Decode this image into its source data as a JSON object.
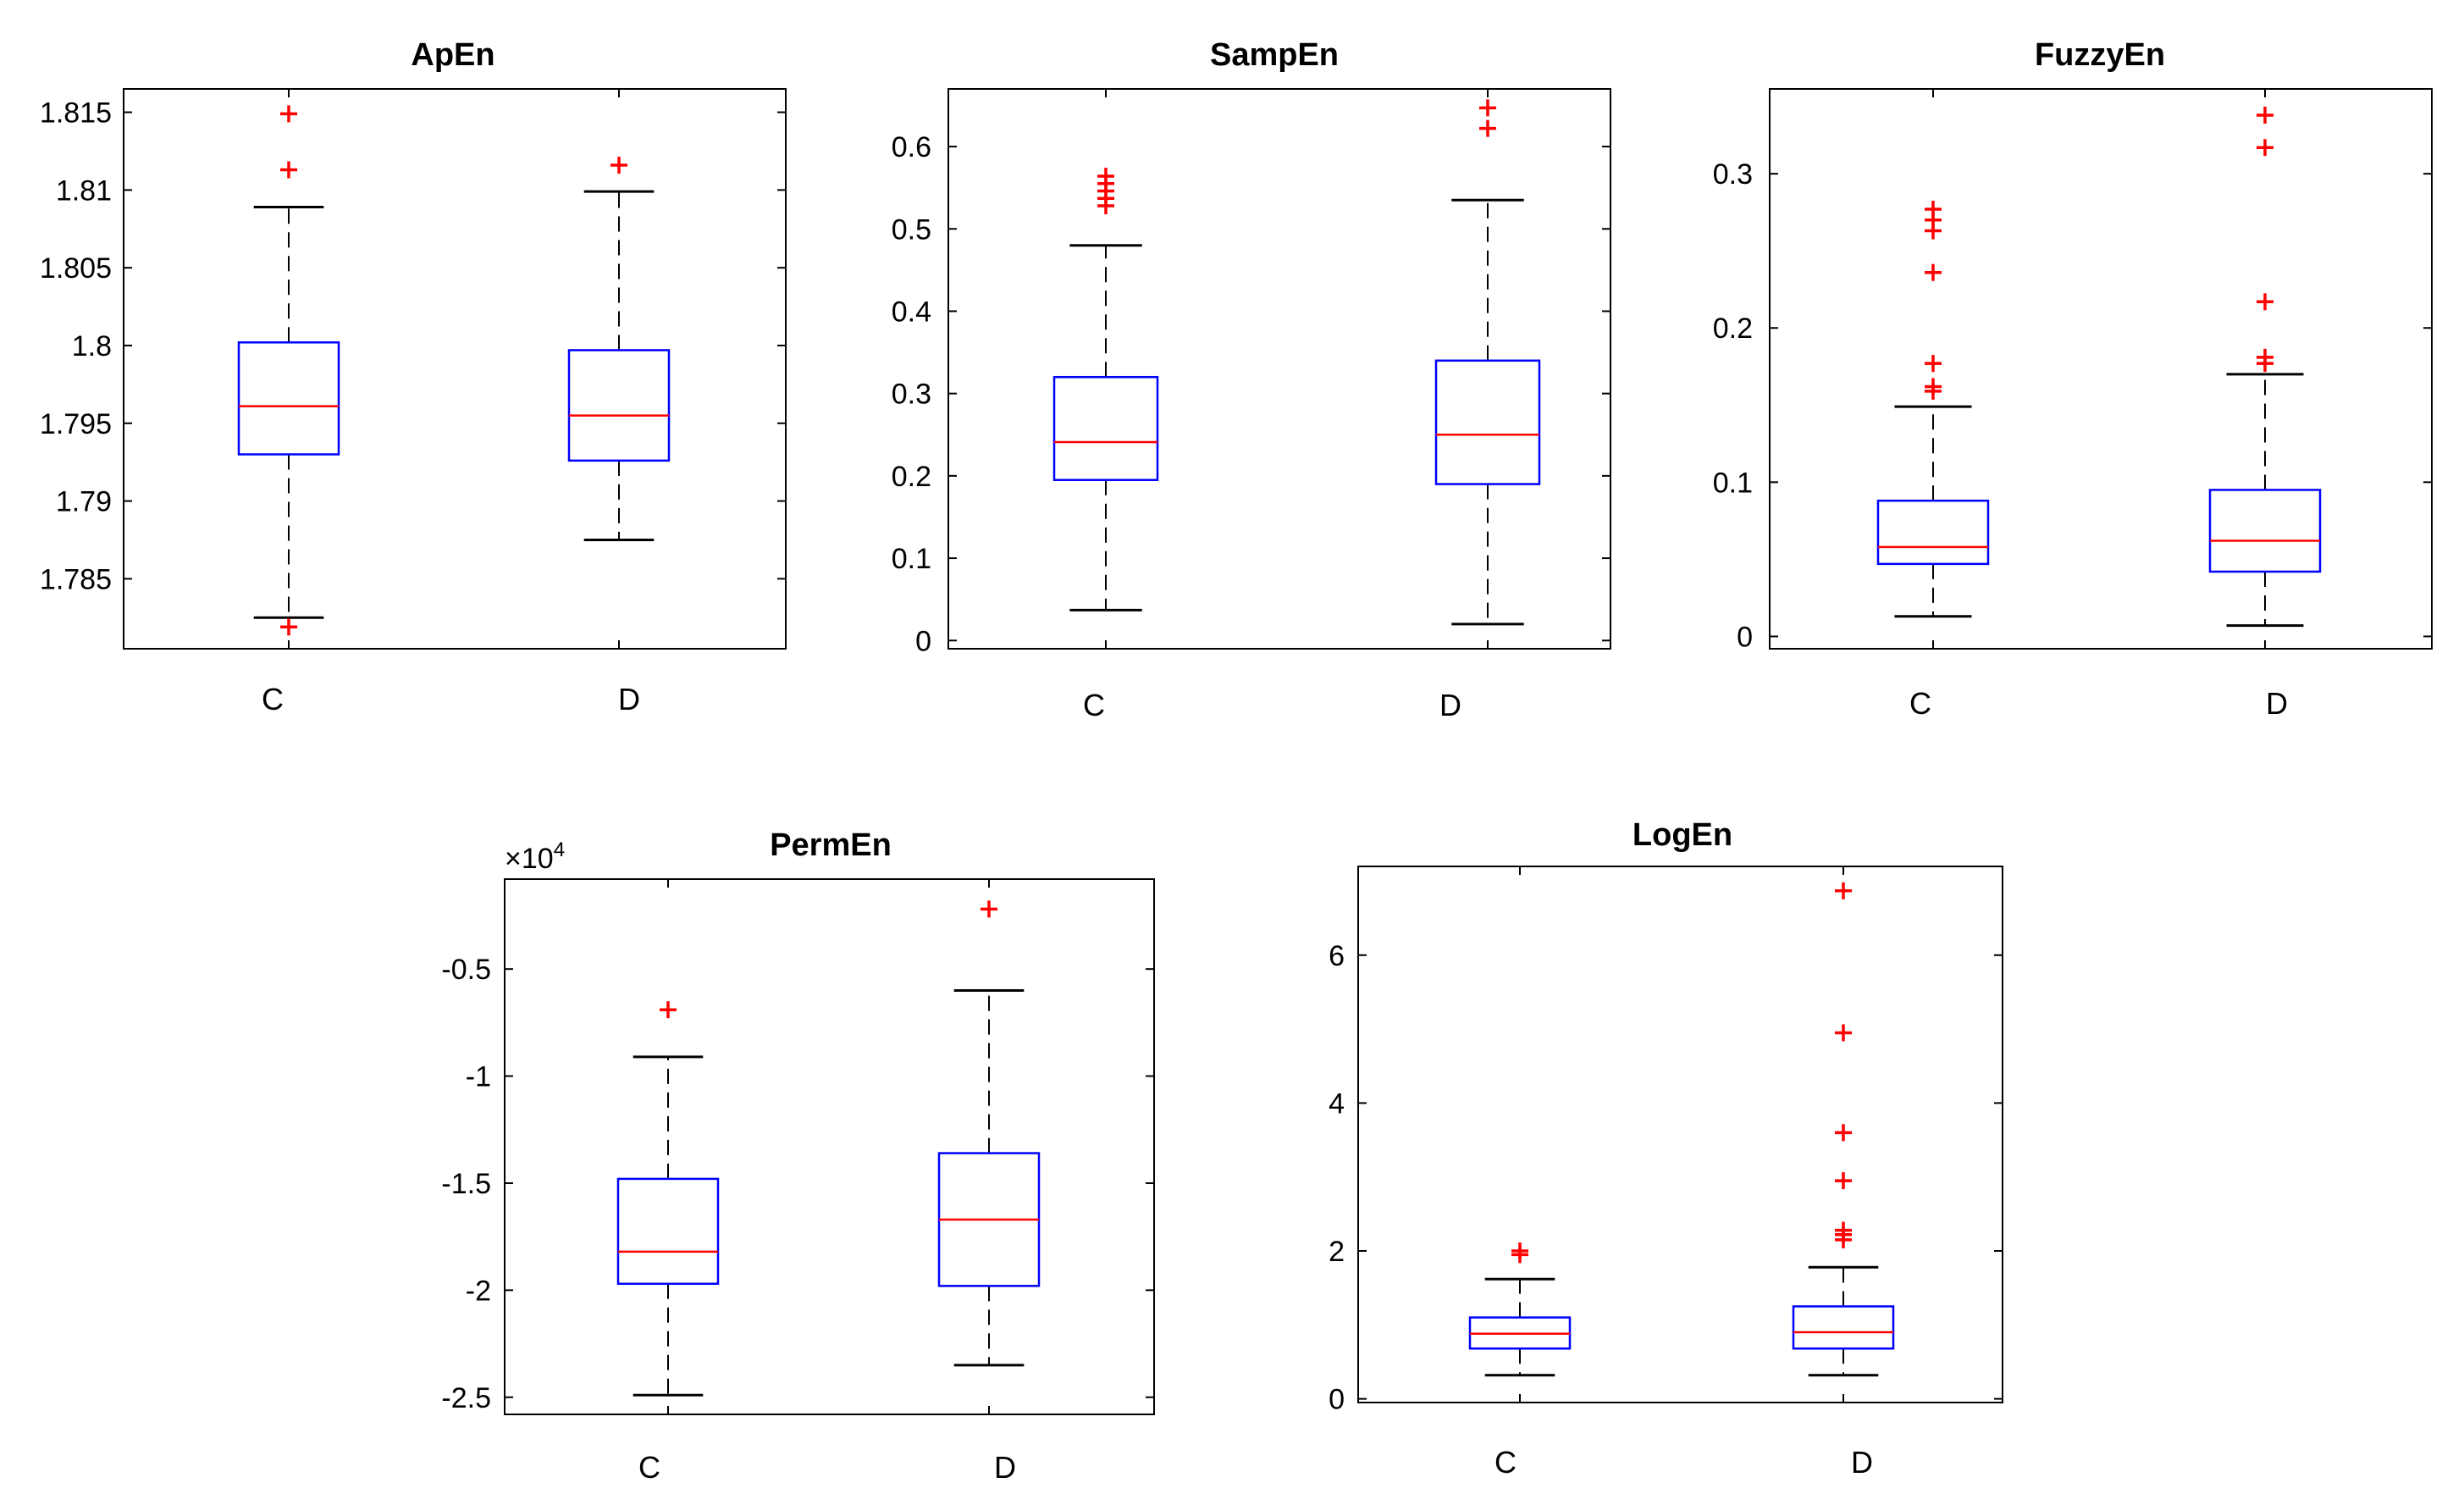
{
  "chart_data": [
    {
      "type": "boxplot",
      "title": "ApEn",
      "categories": [
        "C",
        "D"
      ],
      "ylim": [
        1.7805,
        1.8165
      ],
      "yticks": [
        1.785,
        1.79,
        1.795,
        1.8,
        1.805,
        1.81,
        1.815
      ],
      "ytick_labels": [
        "1.785",
        "1.79",
        "1.795",
        "1.8",
        "1.805",
        "1.81",
        "1.815"
      ],
      "boxes": [
        {
          "whisker_low": 1.7825,
          "q1": 1.793,
          "median": 1.7961,
          "q3": 1.8002,
          "whisker_high": 1.8089,
          "outliers": [
            1.8149,
            1.8113,
            1.7819
          ]
        },
        {
          "whisker_low": 1.7875,
          "q1": 1.7926,
          "median": 1.7955,
          "q3": 1.7997,
          "whisker_high": 1.8099,
          "outliers": [
            1.8116
          ]
        }
      ]
    },
    {
      "type": "boxplot",
      "title": "SampEn",
      "categories": [
        "C",
        "D"
      ],
      "ylim": [
        -0.01,
        0.67
      ],
      "yticks": [
        0,
        0.1,
        0.2,
        0.3,
        0.4,
        0.5,
        0.6
      ],
      "ytick_labels": [
        "0",
        "0.1",
        "0.2",
        "0.3",
        "0.4",
        "0.5",
        "0.6"
      ],
      "boxes": [
        {
          "whisker_low": 0.037,
          "q1": 0.195,
          "median": 0.241,
          "q3": 0.32,
          "whisker_high": 0.48,
          "outliers": [
            0.528,
            0.537,
            0.546,
            0.555,
            0.564
          ]
        },
        {
          "whisker_low": 0.02,
          "q1": 0.19,
          "median": 0.25,
          "q3": 0.34,
          "whisker_high": 0.535,
          "outliers": [
            0.622,
            0.647
          ]
        }
      ]
    },
    {
      "type": "boxplot",
      "title": "FuzzyEn",
      "categories": [
        "C",
        "D"
      ],
      "ylim": [
        -0.008,
        0.355
      ],
      "yticks": [
        0,
        0.1,
        0.2,
        0.3
      ],
      "ytick_labels": [
        "0",
        "0.1",
        "0.2",
        "0.3"
      ],
      "boxes": [
        {
          "whisker_low": 0.013,
          "q1": 0.047,
          "median": 0.058,
          "q3": 0.088,
          "whisker_high": 0.149,
          "outliers": [
            0.159,
            0.162,
            0.177,
            0.236,
            0.263,
            0.27,
            0.277
          ]
        },
        {
          "whisker_low": 0.007,
          "q1": 0.042,
          "median": 0.062,
          "q3": 0.095,
          "whisker_high": 0.17,
          "outliers": [
            0.177,
            0.181,
            0.217,
            0.317,
            0.338
          ]
        }
      ]
    },
    {
      "type": "boxplot",
      "title": "PermEn",
      "categories": [
        "C",
        "D"
      ],
      "exponent_label": "×10",
      "exponent_power": "4",
      "ylim": [
        -2.58,
        -0.08
      ],
      "yticks": [
        -2.5,
        -2,
        -1.5,
        -1,
        -0.5
      ],
      "ytick_labels": [
        "-2.5",
        "-2",
        "-1.5",
        "-1",
        "-0.5"
      ],
      "boxes": [
        {
          "whisker_low": -2.49,
          "q1": -1.97,
          "median": -1.82,
          "q3": -1.48,
          "whisker_high": -0.91,
          "outliers": [
            -0.69
          ]
        },
        {
          "whisker_low": -2.35,
          "q1": -1.98,
          "median": -1.67,
          "q3": -1.36,
          "whisker_high": -0.6,
          "outliers": [
            -0.22
          ]
        }
      ]
    },
    {
      "type": "boxplot",
      "title": "LogEn",
      "categories": [
        "C",
        "D"
      ],
      "ylim": [
        -0.05,
        7.2
      ],
      "yticks": [
        0,
        2,
        4,
        6
      ],
      "ytick_labels": [
        "0",
        "2",
        "4",
        "6"
      ],
      "boxes": [
        {
          "whisker_low": 0.32,
          "q1": 0.68,
          "median": 0.88,
          "q3": 1.1,
          "whisker_high": 1.62,
          "outliers": [
            1.95,
            2.0
          ]
        },
        {
          "whisker_low": 0.32,
          "q1": 0.68,
          "median": 0.9,
          "q3": 1.25,
          "whisker_high": 1.78,
          "outliers": [
            2.15,
            2.22,
            2.28,
            2.95,
            3.6,
            4.95,
            6.87
          ]
        }
      ]
    }
  ],
  "colors": {
    "box": "#0000ff",
    "median": "#ff0000",
    "outlier": "#ff0000",
    "whisker": "#000000",
    "axes": "#000000"
  }
}
